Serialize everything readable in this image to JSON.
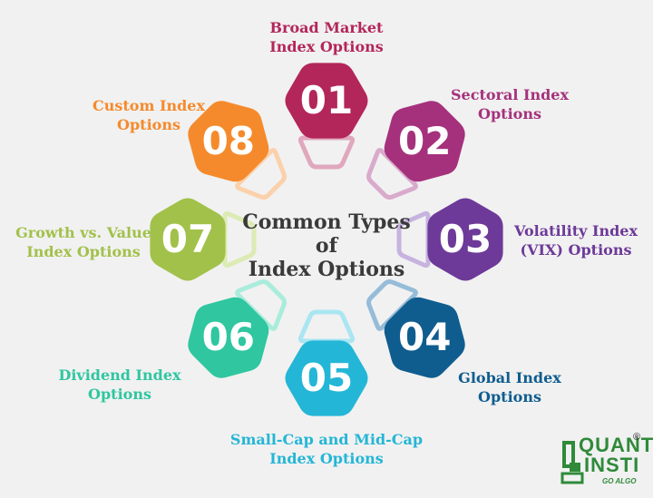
{
  "center_title": [
    "Common Types",
    "of",
    "Index Options"
  ],
  "items": [
    {
      "number": "01",
      "label_lines": [
        "Broad Market",
        "Index Options"
      ],
      "color": "#b3265a",
      "ring_color": "#e0a7bd"
    },
    {
      "number": "02",
      "label_lines": [
        "Sectoral Index",
        "Options"
      ],
      "color": "#a5317c",
      "ring_color": "#d9aacb"
    },
    {
      "number": "03",
      "label_lines": [
        "Volatility Index",
        "(VIX) Options"
      ],
      "color": "#6d3a99",
      "ring_color": "#c6b3df"
    },
    {
      "number": "04",
      "label_lines": [
        "Global Index",
        "Options"
      ],
      "color": "#0f5d8f",
      "ring_color": "#95bcd8"
    },
    {
      "number": "05",
      "label_lines": [
        "Small-Cap and Mid-Cap",
        "Index Options"
      ],
      "color": "#24b6d6",
      "ring_color": "#a9e6f2"
    },
    {
      "number": "06",
      "label_lines": [
        "Dividend Index",
        "Options"
      ],
      "color": "#2fc6a0",
      "ring_color": "#a9ecdb"
    },
    {
      "number": "07",
      "label_lines": [
        "Growth vs. Value",
        "Index Options"
      ],
      "color": "#a2c14a",
      "ring_color": "#dcebb4"
    },
    {
      "number": "08",
      "label_lines": [
        "Custom Index",
        "Options"
      ],
      "color": "#f58a2c",
      "ring_color": "#fbd1ab"
    }
  ],
  "logo": {
    "line1": "QUANT",
    "line2": "INSTI",
    "tagline": "GO ALGO",
    "mark": "®",
    "color": "#2f8a3a"
  }
}
